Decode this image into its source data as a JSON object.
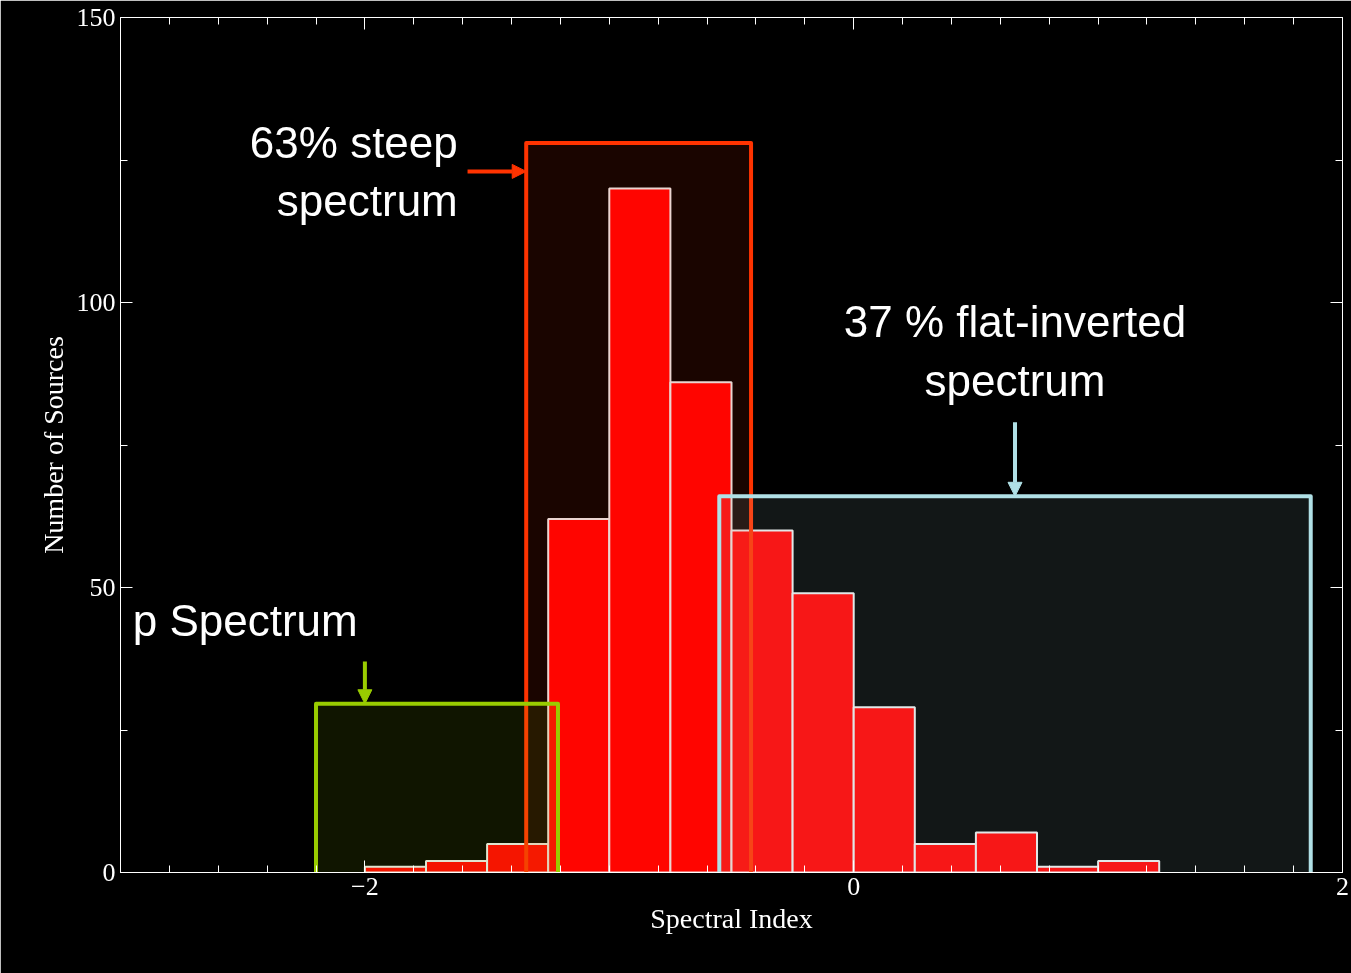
{
  "chart_data": {
    "type": "histogram",
    "xlabel": "Spectral Index",
    "ylabel": "Number of Sources",
    "bins": [
      -2.0,
      -1.75,
      -1.5,
      -1.25,
      -1.0,
      -0.75,
      -0.5,
      -0.25,
      0.0,
      0.25,
      0.5,
      0.75,
      1.0,
      1.25
    ],
    "values": [
      1,
      2,
      5,
      62,
      120,
      86,
      60,
      49,
      29,
      5,
      7,
      1,
      2
    ],
    "color": "#ff0000",
    "xlim": [
      -3,
      2
    ],
    "ylim": [
      0,
      150
    ],
    "xticks": [
      -2,
      0,
      2
    ],
    "yticks": [
      0,
      50,
      100,
      150
    ],
    "grid": false,
    "bands": [
      {
        "axis": "x",
        "from": -1.34,
        "to": -0.42,
        "label": "63% steep spectrum",
        "color": "#ff3300"
      },
      {
        "axis": "x",
        "from": -0.55,
        "to": 1.87,
        "label": "37 % flat-inverted\nspectrum",
        "color": "#b0e0e6"
      },
      {
        "axis": "x",
        "from": -2.2,
        "to": -1.21,
        "label": "p Spectrum",
        "color": "#99cc00"
      }
    ]
  }
}
